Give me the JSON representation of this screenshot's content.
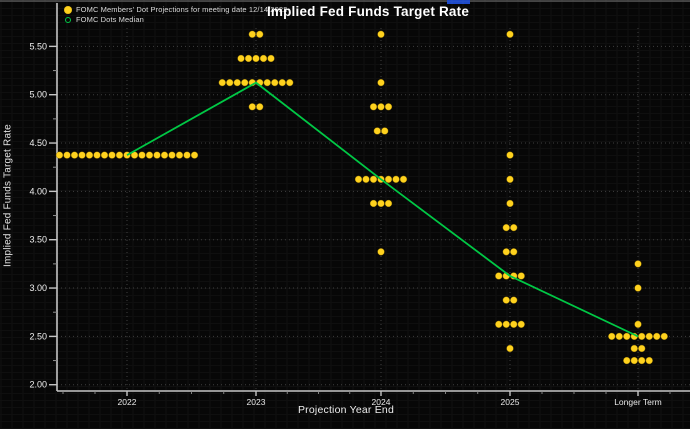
{
  "title": "Implied Fed Funds Target Rate",
  "legend": {
    "position": "top-left",
    "items": [
      {
        "label": "FOMC Members' Dot Projections for meeting date 12/14/2022",
        "marker": "filled-dot",
        "color": "#ffd21e"
      },
      {
        "label": "FOMC Dots Median",
        "marker": "open-dot",
        "color": "#00c845"
      }
    ]
  },
  "chart_data": {
    "type": "scatter",
    "subtype": "fomc-dot-plot",
    "title": "Implied Fed Funds Target Rate",
    "xlabel": "Projection Year End",
    "ylabel": "Implied Fed Funds Target Rate",
    "categories": [
      "2022",
      "2023",
      "2024",
      "2025",
      "Longer Term"
    ],
    "ylim": [
      1.94,
      5.69
    ],
    "yticks": [
      "2.00",
      "2.50",
      "3.00",
      "3.50",
      "4.00",
      "4.50",
      "5.00",
      "5.50"
    ],
    "minor_tick_step": 0.25,
    "grid": "dotted",
    "legend_position": "top-left",
    "background_color": "#070707",
    "dot_color": "#ffd21e",
    "median_color": "#00c845",
    "axis_color": "#c5c5c5",
    "grid_color": "#3f3f3f",
    "dots": [
      {
        "category": "2022",
        "distribution": [
          {
            "rate": 4.375,
            "count": 19
          }
        ]
      },
      {
        "category": "2023",
        "distribution": [
          {
            "rate": 5.625,
            "count": 2
          },
          {
            "rate": 5.375,
            "count": 5
          },
          {
            "rate": 5.125,
            "count": 10
          },
          {
            "rate": 4.875,
            "count": 2
          }
        ]
      },
      {
        "category": "2024",
        "distribution": [
          {
            "rate": 5.625,
            "count": 1
          },
          {
            "rate": 5.125,
            "count": 1
          },
          {
            "rate": 4.875,
            "count": 3
          },
          {
            "rate": 4.625,
            "count": 2
          },
          {
            "rate": 4.125,
            "count": 7
          },
          {
            "rate": 3.875,
            "count": 3
          },
          {
            "rate": 3.375,
            "count": 1
          }
        ]
      },
      {
        "category": "2025",
        "distribution": [
          {
            "rate": 5.625,
            "count": 1
          },
          {
            "rate": 4.375,
            "count": 1
          },
          {
            "rate": 4.125,
            "count": 1
          },
          {
            "rate": 3.875,
            "count": 1
          },
          {
            "rate": 3.625,
            "count": 2
          },
          {
            "rate": 3.375,
            "count": 2
          },
          {
            "rate": 3.125,
            "count": 4
          },
          {
            "rate": 2.875,
            "count": 2
          },
          {
            "rate": 2.625,
            "count": 4
          },
          {
            "rate": 2.375,
            "count": 1
          }
        ]
      },
      {
        "category": "Longer Term",
        "distribution": [
          {
            "rate": 3.25,
            "count": 1
          },
          {
            "rate": 3.0,
            "count": 1
          },
          {
            "rate": 2.625,
            "count": 1
          },
          {
            "rate": 2.5,
            "count": 8
          },
          {
            "rate": 2.375,
            "count": 2
          },
          {
            "rate": 2.25,
            "count": 4
          }
        ]
      }
    ],
    "series": [
      {
        "name": "FOMC Dots Median",
        "values": [
          4.375,
          5.125,
          4.125,
          3.125,
          2.5
        ]
      }
    ]
  }
}
